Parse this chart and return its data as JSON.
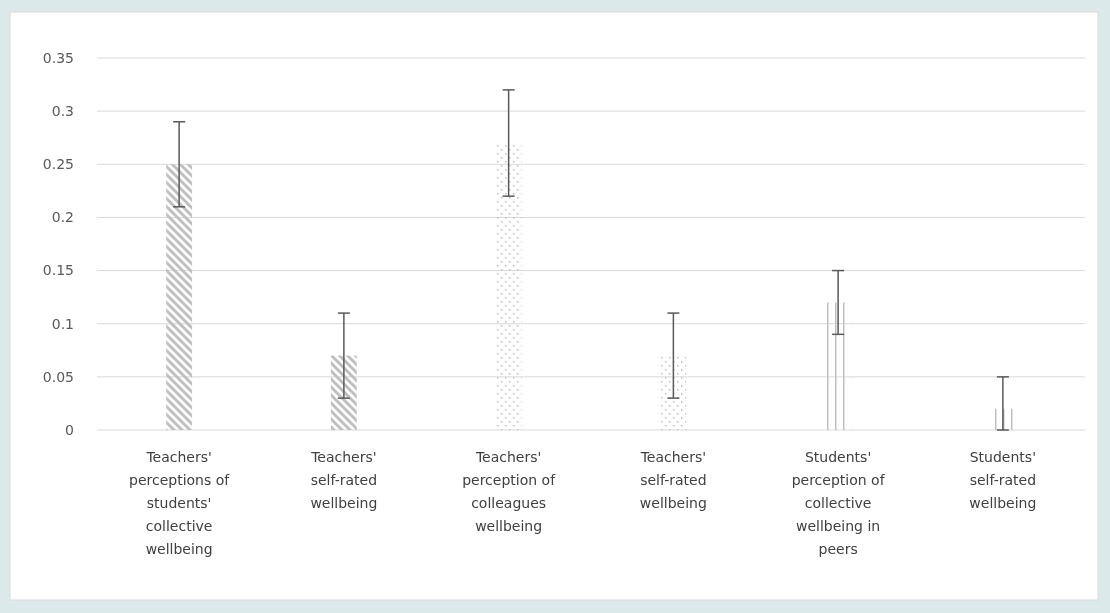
{
  "chart_data": {
    "type": "bar",
    "categories": [
      "Teachers' perceptions of students' collective wellbeing",
      "Teachers' self-rated wellbeing",
      "Teachers' perception of colleagues wellbeing",
      "Teachers' self-rated wellbeing",
      "Students' perception of collective wellbeing in peers",
      "Students' self-rated wellbeing"
    ],
    "values": [
      0.25,
      0.07,
      0.27,
      0.07,
      0.12,
      0.02
    ],
    "errors": [
      [
        0.21,
        0.29
      ],
      [
        0.03,
        0.11
      ],
      [
        0.22,
        0.32
      ],
      [
        0.03,
        0.11
      ],
      [
        0.09,
        0.15
      ],
      [
        0,
        0.05
      ]
    ],
    "colors": [
      "#bfbfbf",
      "#bfbfbf",
      "#bfbfbf",
      "#bfbfbf",
      "#bfbfbf",
      "#bfbfbf"
    ],
    "ylim": [
      0,
      0.35
    ],
    "yticks": [
      0,
      0.05,
      0.1,
      0.15,
      0.2,
      0.25,
      0.3,
      0.35
    ],
    "grid": "y"
  }
}
